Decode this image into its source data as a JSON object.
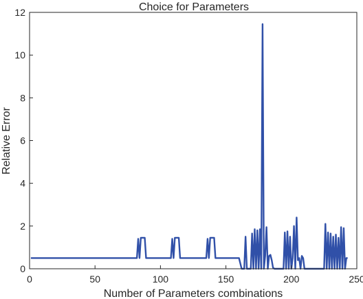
{
  "chart_data": {
    "type": "line",
    "title": "Choice for Parameters",
    "xlabel": "Number of Parameters combinations",
    "ylabel": "Relative Error",
    "xlim": [
      0,
      250
    ],
    "ylim": [
      0,
      12
    ],
    "xticks": [
      "0",
      "50",
      "100",
      "150",
      "200",
      "250"
    ],
    "yticks": [
      "0",
      "2",
      "4",
      "6",
      "8",
      "10",
      "12"
    ],
    "grid": false,
    "legend": "none",
    "series": [
      {
        "color": "#3050a8",
        "x": [
          1,
          82,
          83,
          84,
          85,
          86,
          87,
          88,
          89,
          90,
          91,
          108,
          109,
          110,
          111,
          112,
          113,
          114,
          115,
          116,
          117,
          135,
          136,
          137,
          138,
          139,
          140,
          141,
          142,
          143,
          144,
          145,
          160,
          162,
          163,
          164,
          165,
          166,
          167,
          168,
          169,
          170,
          171,
          172,
          173,
          174,
          175,
          176,
          177,
          178,
          179,
          180,
          181,
          182,
          183,
          184,
          185,
          186,
          187,
          188,
          189,
          190,
          191,
          192,
          193,
          194,
          195,
          196,
          197,
          198,
          199,
          200,
          201,
          202,
          203,
          204,
          205,
          206,
          207,
          208,
          209,
          210,
          211,
          212,
          213,
          214,
          215,
          216,
          217,
          218,
          219,
          220,
          221,
          222,
          223,
          224,
          225,
          226,
          227,
          228,
          229,
          230,
          231,
          232,
          233,
          234,
          235,
          236,
          237,
          238,
          239,
          240,
          241,
          242,
          243
        ],
        "y": [
          0.5,
          0.5,
          1.4,
          0.5,
          1.45,
          1.45,
          1.45,
          1.45,
          0.5,
          0.5,
          0.5,
          0.5,
          1.4,
          0.5,
          1.45,
          1.45,
          1.45,
          1.45,
          0.5,
          0.5,
          0.5,
          0.5,
          1.4,
          0.5,
          1.45,
          1.45,
          1.45,
          1.45,
          0.5,
          0.5,
          0.5,
          0.5,
          0.5,
          0.0,
          0.0,
          0.0,
          1.5,
          0.0,
          0.0,
          0.0,
          0.0,
          1.65,
          0.0,
          1.85,
          0.0,
          1.8,
          0.0,
          1.85,
          0.0,
          11.45,
          0.0,
          0.6,
          1.95,
          0.0,
          0.6,
          0.65,
          0.4,
          0.05,
          0.0,
          0.0,
          0.0,
          0.0,
          0.0,
          0.0,
          0.0,
          0.0,
          1.7,
          0.0,
          1.75,
          0.0,
          1.5,
          0.0,
          0.5,
          2.0,
          0.0,
          2.4,
          0.4,
          0.5,
          0.0,
          0.6,
          0.5,
          0.0,
          0.0,
          0.0,
          0.0,
          0.0,
          0.0,
          0.0,
          0.0,
          0.0,
          0.0,
          0.0,
          0.0,
          0.0,
          0.0,
          0.0,
          0.0,
          2.1,
          0.0,
          1.7,
          0.0,
          1.65,
          0.0,
          1.5,
          0.0,
          1.6,
          0.0,
          1.45,
          0.0,
          1.95,
          0.0,
          1.9,
          0.0,
          0.5,
          0.5
        ]
      }
    ]
  }
}
